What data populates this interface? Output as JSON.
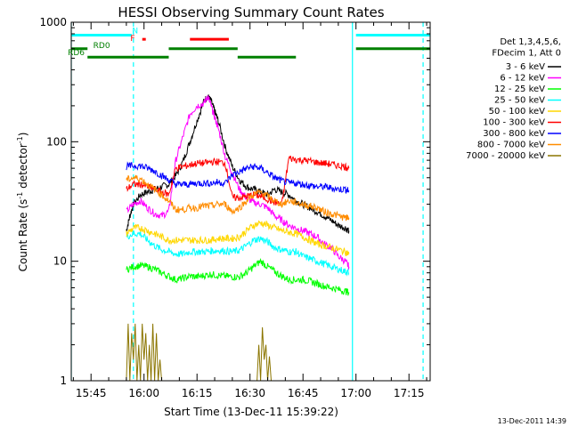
{
  "chart_data": {
    "type": "line",
    "title": "HESSI Observing Summary Count Rates",
    "xlabel": "Start Time (13-Dec-11 15:39:22)",
    "ylabel_main": "Count Rate (s",
    "ylabel_sup1": "-1",
    "ylabel_mid": " detector",
    "ylabel_sup2": "-1",
    "ylabel_end": ")",
    "x_ticks": [
      "15:45",
      "16:00",
      "16:15",
      "16:30",
      "16:45",
      "17:00",
      "17:15"
    ],
    "x_tick_minutes": [
      0,
      15,
      30,
      45,
      60,
      75,
      90
    ],
    "x_minor_step_minutes": 5,
    "xlim_minutes": [
      -5.6,
      96.0
    ],
    "y_scale": "log",
    "ylim": [
      1,
      1000
    ],
    "y_ticks": [
      "1",
      "10",
      "100",
      "1000"
    ],
    "y_tick_values": [
      1,
      10,
      100,
      1000
    ],
    "x_axis_note": "x values are minutes after 15:45 UT",
    "timestamp": "13-Dec-2011 14:39",
    "legend": {
      "header": [
        "Det 1,3,4,5,6,",
        "FDecim 1, Att 0"
      ],
      "placement": "right"
    },
    "series": [
      {
        "name": "3 - 6 keV",
        "color": "#000000",
        "x": [
          -5.6,
          10,
          11,
          12,
          14,
          16,
          18,
          20,
          22,
          24,
          26,
          28,
          30,
          32,
          33,
          34,
          35,
          36,
          38,
          40,
          42,
          44,
          46,
          48,
          50,
          52,
          54,
          56,
          58,
          60,
          62,
          64,
          66,
          68,
          70,
          72,
          73
        ],
        "y": [
          null,
          18,
          24,
          30,
          36,
          38,
          40,
          42,
          44,
          52,
          68,
          100,
          150,
          220,
          240,
          220,
          180,
          150,
          90,
          62,
          48,
          42,
          40,
          38,
          36,
          40,
          38,
          36,
          32,
          30,
          28,
          26,
          24,
          22,
          20,
          19,
          18
        ]
      },
      {
        "name": "6 - 12 keV",
        "color": "#ff00ff",
        "x": [
          10,
          12,
          14,
          16,
          18,
          20,
          22,
          24,
          26,
          28,
          30,
          32,
          33,
          34,
          35,
          36,
          38,
          40,
          42,
          44,
          46,
          48,
          50,
          52,
          54,
          56,
          58,
          60,
          62,
          64,
          66,
          68,
          70,
          72,
          73
        ],
        "y": [
          26,
          30,
          32,
          28,
          25,
          24,
          26,
          70,
          110,
          170,
          200,
          210,
          240,
          200,
          160,
          130,
          75,
          55,
          40,
          34,
          31,
          30,
          28,
          24,
          22,
          20,
          19,
          18,
          17,
          16,
          14,
          13,
          11,
          10,
          9
        ]
      },
      {
        "name": "12 - 25 keV",
        "color": "#00ff00",
        "x": [
          10,
          12,
          14,
          16,
          18,
          20,
          22,
          24,
          26,
          28,
          30,
          32,
          34,
          36,
          38,
          40,
          42,
          44,
          46,
          48,
          50,
          52,
          54,
          56,
          58,
          60,
          62,
          64,
          66,
          68,
          70,
          72,
          73
        ],
        "y": [
          8.5,
          9.0,
          9.2,
          9.0,
          8.6,
          8.0,
          7.5,
          7.0,
          7.2,
          7.5,
          7.4,
          7.6,
          7.8,
          7.6,
          7.5,
          7.4,
          7.4,
          8.0,
          9.0,
          10.0,
          9.0,
          8.2,
          7.5,
          7.0,
          7.0,
          7.0,
          6.8,
          6.5,
          6.2,
          6.0,
          5.8,
          5.6,
          5.5
        ]
      },
      {
        "name": "25 - 50 keV",
        "color": "#00ffff",
        "x": [
          10,
          12,
          14,
          16,
          18,
          20,
          22,
          24,
          26,
          28,
          30,
          32,
          34,
          36,
          38,
          40,
          42,
          44,
          46,
          48,
          50,
          52,
          54,
          56,
          58,
          60,
          62,
          64,
          66,
          68,
          70,
          72,
          73
        ],
        "y": [
          16,
          17,
          17,
          15,
          13.5,
          12.5,
          12,
          11.5,
          11.5,
          12,
          12,
          12,
          12.2,
          12.3,
          12.2,
          12,
          12.3,
          13.5,
          15,
          15.5,
          14.5,
          13,
          12.5,
          12,
          12,
          11,
          10.5,
          10,
          9.5,
          9,
          8.6,
          8.2,
          8
        ]
      },
      {
        "name": "50 - 100 keV",
        "color": "#ffd700",
        "x": [
          10,
          12,
          14,
          16,
          18,
          20,
          22,
          24,
          26,
          28,
          30,
          32,
          34,
          36,
          38,
          40,
          42,
          44,
          46,
          48,
          50,
          52,
          54,
          56,
          58,
          60,
          62,
          64,
          66,
          68,
          70,
          72,
          73
        ],
        "y": [
          17,
          19,
          19,
          18,
          17,
          16,
          15,
          15,
          15,
          15,
          15,
          15,
          15,
          15.5,
          15.5,
          15.5,
          16,
          18,
          20,
          21,
          20,
          19,
          18,
          17.5,
          17,
          16,
          15,
          14,
          13.5,
          13,
          12.5,
          12,
          11.5
        ]
      },
      {
        "name": "100 - 300 keV",
        "color": "#ff0000",
        "x": [
          10,
          12,
          14,
          16,
          18,
          20,
          22,
          24,
          26,
          28,
          30,
          32,
          34,
          36,
          38,
          40,
          42,
          44,
          46,
          48,
          50,
          52,
          54,
          56,
          58,
          60,
          62,
          64,
          66,
          68,
          70,
          72,
          73
        ],
        "y": [
          40,
          44,
          44,
          42,
          40,
          38,
          36,
          60,
          62,
          64,
          66,
          66,
          68,
          68,
          66,
          34,
          34,
          35,
          36,
          35,
          33,
          31,
          30,
          73,
          71,
          70,
          69,
          67,
          66,
          65,
          63,
          62,
          60
        ]
      },
      {
        "name": "300 - 800 keV",
        "color": "#0000ff",
        "x": [
          10,
          12,
          14,
          16,
          18,
          20,
          22,
          24,
          26,
          28,
          30,
          32,
          34,
          36,
          38,
          40,
          42,
          44,
          46,
          48,
          50,
          52,
          54,
          56,
          58,
          60,
          62,
          64,
          66,
          68,
          70,
          72,
          73
        ],
        "y": [
          62,
          63,
          63,
          60,
          57,
          52,
          48,
          44,
          44,
          44,
          45,
          45,
          45,
          46,
          45,
          53,
          56,
          60,
          62,
          60,
          55,
          50,
          47,
          45,
          45,
          44,
          43,
          42,
          42,
          41,
          40,
          40,
          39
        ]
      },
      {
        "name": "800 - 7000 keV",
        "color": "#ff8c00",
        "x": [
          10,
          12,
          14,
          16,
          18,
          20,
          22,
          24,
          26,
          28,
          30,
          32,
          34,
          36,
          38,
          40,
          42,
          44,
          46,
          48,
          50,
          52,
          54,
          56,
          58,
          60,
          62,
          64,
          66,
          68,
          70,
          72,
          73
        ],
        "y": [
          48,
          50,
          49,
          44,
          40,
          36,
          32,
          27,
          27,
          28,
          28,
          29,
          29,
          30,
          30,
          26,
          28,
          32,
          36,
          38,
          35,
          32,
          30,
          32,
          31,
          30,
          29,
          28,
          26,
          25,
          24,
          23,
          23
        ]
      },
      {
        "name": "7000 - 20000 keV",
        "color": "#8b7500",
        "x": [
          10,
          10.5,
          11,
          11.5,
          12,
          12.5,
          13,
          13.5,
          14,
          14.5,
          15,
          15.5,
          16,
          16.5,
          17,
          17.5,
          18,
          18.5,
          19,
          19.5,
          20,
          47,
          47.5,
          48,
          48.5,
          49,
          49.5,
          50,
          50.5,
          51
        ],
        "y": [
          1,
          3,
          1,
          2.5,
          1.5,
          3,
          1,
          2,
          1,
          3,
          1.5,
          2.5,
          1,
          2,
          1,
          3,
          1,
          2.5,
          1,
          1.5,
          1,
          1,
          2,
          1,
          2.8,
          1.5,
          2,
          1,
          1.6,
          1
        ]
      }
    ],
    "annotations": [
      {
        "text": "N",
        "color": "#00ffff",
        "x": 12.5,
        "y": 810
      },
      {
        "text": "F",
        "color": "#ff0000",
        "x": 11.8,
        "y": 700
      },
      {
        "text": "RD0",
        "color": "#008000",
        "x": 3.0,
        "y": 610
      },
      {
        "text": "RD6",
        "color": "#008000",
        "x": -4.2,
        "y": 530
      }
    ],
    "state_bars": [
      {
        "color": "#00ffff",
        "y": 780,
        "x0": -5.6,
        "x1": 11.5
      },
      {
        "color": "#00ffff",
        "y": 780,
        "x0": 75.0,
        "x1": 96.0
      },
      {
        "color": "#ff0000",
        "y": 720,
        "x0": 14.5,
        "x1": 15.5
      },
      {
        "color": "#ff0000",
        "y": 720,
        "x0": 28.0,
        "x1": 39.0
      },
      {
        "color": "#008000",
        "y": 600,
        "x0": -5.6,
        "x1": -1.0
      },
      {
        "color": "#008000",
        "y": 600,
        "x0": 22.0,
        "x1": 41.5
      },
      {
        "color": "#008000",
        "y": 600,
        "x0": 75.0,
        "x1": 96.0
      },
      {
        "color": "#008000",
        "y": 510,
        "x0": -1.0,
        "x1": 22.0
      },
      {
        "color": "#008000",
        "y": 510,
        "x0": 41.5,
        "x1": 58.0
      }
    ],
    "vertical_markers": [
      {
        "x": -5.6,
        "color": "#00ffff",
        "style": "solid"
      },
      {
        "x": 12.0,
        "color": "#00ffff",
        "style": "dashed"
      },
      {
        "x": 74.0,
        "color": "#00ffff",
        "style": "solid"
      },
      {
        "x": 94.0,
        "color": "#00ffff",
        "style": "dashed"
      }
    ]
  }
}
